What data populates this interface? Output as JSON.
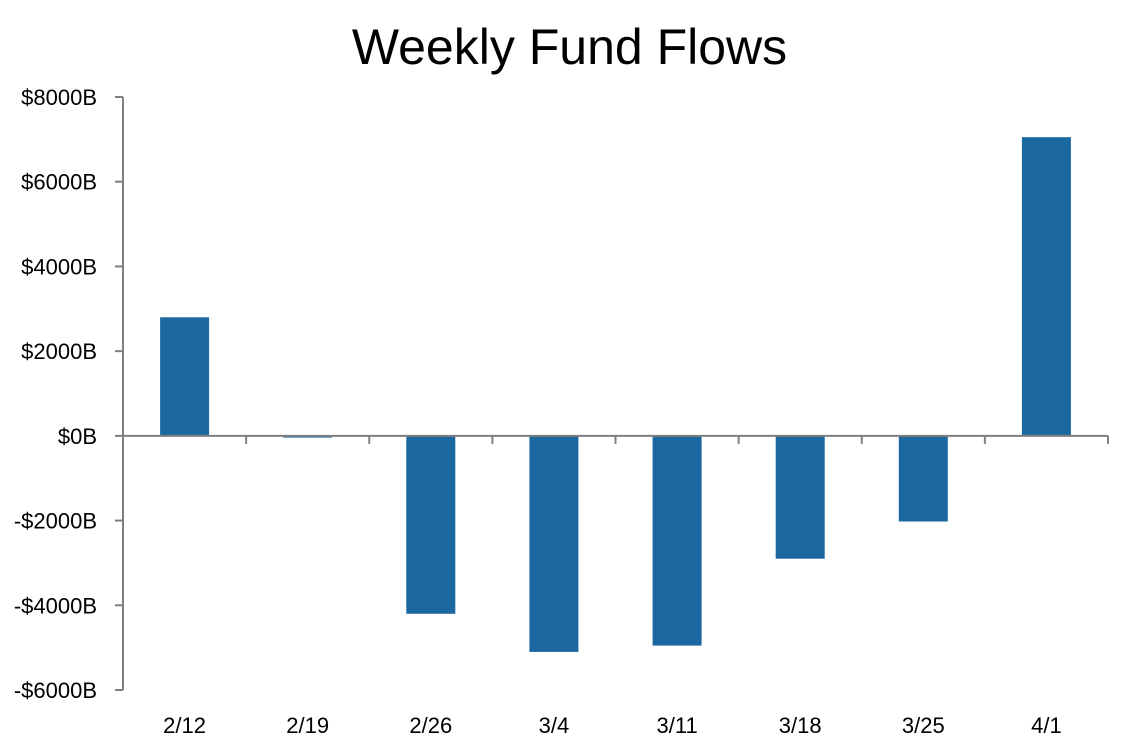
{
  "chart_data": {
    "type": "bar",
    "title": "Weekly Fund Flows",
    "xlabel": "",
    "ylabel": "",
    "categories": [
      "2/12",
      "2/19",
      "2/26",
      "3/4",
      "3/11",
      "3/18",
      "3/25",
      "4/1"
    ],
    "values": [
      2800,
      -40,
      -4200,
      -5100,
      -4950,
      -2900,
      -2020,
      7050
    ],
    "ylim": [
      -6000,
      8000
    ],
    "yticks": [
      8000,
      6000,
      4000,
      2000,
      0,
      -2000,
      -4000,
      -6000
    ],
    "ytick_labels": [
      "$8000B",
      "$6000B",
      "$4000B",
      "$2000B",
      "$0B",
      "-$2000B",
      "-$4000B",
      "-$6000B"
    ],
    "bar_color": "#1b67a0",
    "axis_color": "#7f7f7f",
    "grid": false,
    "legend": "none"
  }
}
